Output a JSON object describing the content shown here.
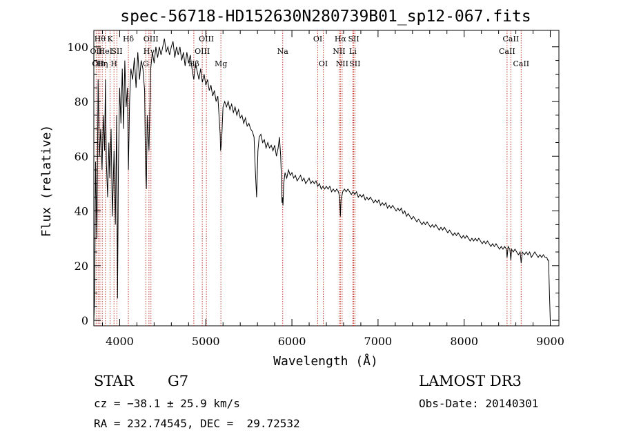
{
  "chart_data": {
    "type": "line",
    "title": "spec-56718-HD152630N280739B01_sp12-067.fits",
    "xlabel": "Wavelength (Å)",
    "ylabel": "Flux (relative)",
    "xlim": [
      3700,
      9100
    ],
    "ylim": [
      -2,
      106
    ],
    "xticks": [
      4000,
      5000,
      6000,
      7000,
      8000,
      9000
    ],
    "yticks": [
      0,
      20,
      40,
      60,
      80,
      100
    ],
    "grid": false,
    "line_color": "#000000",
    "marker_color": "#c0392b",
    "series": [
      {
        "values": [
          [
            3700,
            0
          ],
          [
            3710,
            8
          ],
          [
            3720,
            58
          ],
          [
            3735,
            30
          ],
          [
            3750,
            88
          ],
          [
            3765,
            60
          ],
          [
            3780,
            70
          ],
          [
            3795,
            55
          ],
          [
            3810,
            75
          ],
          [
            3825,
            62
          ],
          [
            3835,
            88
          ],
          [
            3845,
            58
          ],
          [
            3860,
            45
          ],
          [
            3875,
            65
          ],
          [
            3885,
            52
          ],
          [
            3900,
            70
          ],
          [
            3915,
            38
          ],
          [
            3935,
            62
          ],
          [
            3950,
            35
          ],
          [
            3965,
            75
          ],
          [
            3975,
            8
          ],
          [
            3985,
            55
          ],
          [
            4000,
            85
          ],
          [
            4015,
            72
          ],
          [
            4030,
            92
          ],
          [
            4045,
            70
          ],
          [
            4060,
            95
          ],
          [
            4075,
            78
          ],
          [
            4090,
            85
          ],
          [
            4101,
            55
          ],
          [
            4115,
            80
          ],
          [
            4130,
            92
          ],
          [
            4150,
            88
          ],
          [
            4170,
            96
          ],
          [
            4190,
            85
          ],
          [
            4210,
            98
          ],
          [
            4230,
            88
          ],
          [
            4250,
            95
          ],
          [
            4270,
            92
          ],
          [
            4290,
            84
          ],
          [
            4300,
            56
          ],
          [
            4310,
            48
          ],
          [
            4320,
            75
          ],
          [
            4340,
            62
          ],
          [
            4360,
            92
          ],
          [
            4380,
            98
          ],
          [
            4400,
            94
          ],
          [
            4420,
            100
          ],
          [
            4440,
            96
          ],
          [
            4460,
            100
          ],
          [
            4480,
            97
          ],
          [
            4500,
            100
          ],
          [
            4520,
            103
          ],
          [
            4540,
            98
          ],
          [
            4560,
            100
          ],
          [
            4580,
            97
          ],
          [
            4600,
            100
          ],
          [
            4620,
            102
          ],
          [
            4640,
            96
          ],
          [
            4660,
            100
          ],
          [
            4680,
            97
          ],
          [
            4700,
            100
          ],
          [
            4720,
            95
          ],
          [
            4740,
            98
          ],
          [
            4760,
            93
          ],
          [
            4780,
            98
          ],
          [
            4800,
            94
          ],
          [
            4820,
            97
          ],
          [
            4840,
            92
          ],
          [
            4861,
            88
          ],
          [
            4880,
            94
          ],
          [
            4900,
            91
          ],
          [
            4920,
            88
          ],
          [
            4940,
            92
          ],
          [
            4960,
            87
          ],
          [
            4980,
            90
          ],
          [
            5000,
            86
          ],
          [
            5020,
            88
          ],
          [
            5040,
            84
          ],
          [
            5060,
            86
          ],
          [
            5080,
            82
          ],
          [
            5100,
            84
          ],
          [
            5120,
            80
          ],
          [
            5140,
            82
          ],
          [
            5167,
            68
          ],
          [
            5172,
            62
          ],
          [
            5183,
            65
          ],
          [
            5200,
            78
          ],
          [
            5220,
            80
          ],
          [
            5240,
            78
          ],
          [
            5260,
            80
          ],
          [
            5280,
            77
          ],
          [
            5300,
            79
          ],
          [
            5320,
            76
          ],
          [
            5340,
            78
          ],
          [
            5360,
            75
          ],
          [
            5380,
            77
          ],
          [
            5400,
            74
          ],
          [
            5420,
            75
          ],
          [
            5440,
            72
          ],
          [
            5460,
            74
          ],
          [
            5480,
            71
          ],
          [
            5500,
            72
          ],
          [
            5520,
            70
          ],
          [
            5540,
            69
          ],
          [
            5560,
            67
          ],
          [
            5575,
            55
          ],
          [
            5590,
            45
          ],
          [
            5605,
            62
          ],
          [
            5620,
            67
          ],
          [
            5640,
            68
          ],
          [
            5660,
            65
          ],
          [
            5680,
            66
          ],
          [
            5700,
            63
          ],
          [
            5720,
            65
          ],
          [
            5740,
            63
          ],
          [
            5760,
            64
          ],
          [
            5780,
            62
          ],
          [
            5800,
            64
          ],
          [
            5820,
            60
          ],
          [
            5840,
            63
          ],
          [
            5855,
            67
          ],
          [
            5870,
            60
          ],
          [
            5880,
            50
          ],
          [
            5885,
            43
          ],
          [
            5890,
            45
          ],
          [
            5896,
            42
          ],
          [
            5905,
            50
          ],
          [
            5920,
            54
          ],
          [
            5940,
            52
          ],
          [
            5960,
            55
          ],
          [
            5980,
            53
          ],
          [
            6000,
            54
          ],
          [
            6020,
            52
          ],
          [
            6040,
            53
          ],
          [
            6060,
            51
          ],
          [
            6080,
            52
          ],
          [
            6100,
            53
          ],
          [
            6120,
            51
          ],
          [
            6140,
            52
          ],
          [
            6160,
            50
          ],
          [
            6180,
            51
          ],
          [
            6200,
            52
          ],
          [
            6220,
            50
          ],
          [
            6240,
            51
          ],
          [
            6260,
            50
          ],
          [
            6280,
            51
          ],
          [
            6300,
            49
          ],
          [
            6320,
            50
          ],
          [
            6340,
            48
          ],
          [
            6360,
            49
          ],
          [
            6380,
            48
          ],
          [
            6400,
            49
          ],
          [
            6420,
            48
          ],
          [
            6440,
            49
          ],
          [
            6460,
            47
          ],
          [
            6480,
            48
          ],
          [
            6500,
            47
          ],
          [
            6520,
            48
          ],
          [
            6540,
            47
          ],
          [
            6555,
            45
          ],
          [
            6563,
            38
          ],
          [
            6570,
            44
          ],
          [
            6590,
            47
          ],
          [
            6610,
            48
          ],
          [
            6630,
            47
          ],
          [
            6650,
            48
          ],
          [
            6670,
            47
          ],
          [
            6690,
            46
          ],
          [
            6710,
            47
          ],
          [
            6730,
            46
          ],
          [
            6750,
            47
          ],
          [
            6770,
            45
          ],
          [
            6790,
            46
          ],
          [
            6810,
            45
          ],
          [
            6830,
            46
          ],
          [
            6850,
            44
          ],
          [
            6870,
            45
          ],
          [
            6890,
            44
          ],
          [
            6910,
            45
          ],
          [
            6930,
            44
          ],
          [
            6950,
            43
          ],
          [
            6970,
            44
          ],
          [
            6990,
            43
          ],
          [
            7010,
            44
          ],
          [
            7030,
            42
          ],
          [
            7050,
            43
          ],
          [
            7070,
            42
          ],
          [
            7090,
            43
          ],
          [
            7110,
            41
          ],
          [
            7130,
            42
          ],
          [
            7150,
            41
          ],
          [
            7170,
            42
          ],
          [
            7190,
            41
          ],
          [
            7210,
            40
          ],
          [
            7230,
            41
          ],
          [
            7250,
            40
          ],
          [
            7270,
            41
          ],
          [
            7290,
            39
          ],
          [
            7310,
            40
          ],
          [
            7330,
            38
          ],
          [
            7350,
            39
          ],
          [
            7370,
            38
          ],
          [
            7390,
            37
          ],
          [
            7410,
            38
          ],
          [
            7430,
            37
          ],
          [
            7450,
            36
          ],
          [
            7470,
            37
          ],
          [
            7490,
            36
          ],
          [
            7510,
            35
          ],
          [
            7530,
            36
          ],
          [
            7550,
            35
          ],
          [
            7570,
            36
          ],
          [
            7590,
            35
          ],
          [
            7610,
            34
          ],
          [
            7630,
            35
          ],
          [
            7650,
            34
          ],
          [
            7670,
            35
          ],
          [
            7690,
            34
          ],
          [
            7710,
            33
          ],
          [
            7730,
            34
          ],
          [
            7750,
            33
          ],
          [
            7770,
            34
          ],
          [
            7790,
            33
          ],
          [
            7810,
            32
          ],
          [
            7830,
            33
          ],
          [
            7850,
            32
          ],
          [
            7870,
            31
          ],
          [
            7890,
            32
          ],
          [
            7910,
            31
          ],
          [
            7930,
            32
          ],
          [
            7950,
            31
          ],
          [
            7970,
            30
          ],
          [
            7990,
            31
          ],
          [
            8010,
            30
          ],
          [
            8030,
            31
          ],
          [
            8050,
            30
          ],
          [
            8070,
            29
          ],
          [
            8090,
            30
          ],
          [
            8110,
            29
          ],
          [
            8130,
            30
          ],
          [
            8150,
            29
          ],
          [
            8170,
            30
          ],
          [
            8190,
            29
          ],
          [
            8210,
            28
          ],
          [
            8230,
            29
          ],
          [
            8250,
            28
          ],
          [
            8270,
            29
          ],
          [
            8290,
            28
          ],
          [
            8310,
            27
          ],
          [
            8330,
            28
          ],
          [
            8350,
            27
          ],
          [
            8370,
            28
          ],
          [
            8390,
            27
          ],
          [
            8410,
            26
          ],
          [
            8430,
            27
          ],
          [
            8450,
            26
          ],
          [
            8470,
            27
          ],
          [
            8490,
            26
          ],
          [
            8498,
            23
          ],
          [
            8510,
            27
          ],
          [
            8530,
            26
          ],
          [
            8542,
            22
          ],
          [
            8550,
            26
          ],
          [
            8570,
            25
          ],
          [
            8590,
            26
          ],
          [
            8610,
            25
          ],
          [
            8630,
            24
          ],
          [
            8650,
            25
          ],
          [
            8662,
            21
          ],
          [
            8675,
            25
          ],
          [
            8700,
            24
          ],
          [
            8720,
            25
          ],
          [
            8740,
            24
          ],
          [
            8760,
            25
          ],
          [
            8780,
            23
          ],
          [
            8800,
            24
          ],
          [
            8820,
            25
          ],
          [
            8840,
            24
          ],
          [
            8860,
            23
          ],
          [
            8880,
            24
          ],
          [
            8900,
            23
          ],
          [
            8920,
            24
          ],
          [
            8940,
            23
          ],
          [
            8960,
            23
          ],
          [
            8970,
            22
          ],
          [
            8980,
            22
          ],
          [
            8990,
            10
          ],
          [
            9000,
            0
          ]
        ]
      }
    ],
    "line_markers": [
      {
        "wl": 3727,
        "label": "OII",
        "row": 1
      },
      {
        "wl": 3750,
        "label": "OII",
        "row": 2
      },
      {
        "wl": 3771,
        "label": "Hθ",
        "row": 0
      },
      {
        "wl": 3798,
        "label": "Hη",
        "row": 2
      },
      {
        "wl": 3835,
        "label": "HeI",
        "row": 1
      },
      {
        "wl": 3889,
        "label": "K",
        "row": 0
      },
      {
        "wl": 3934,
        "label": "H",
        "row": 2
      },
      {
        "wl": 3968,
        "label": "SII",
        "row": 1
      },
      {
        "wl": 4101,
        "label": "Hδ",
        "row": 0
      },
      {
        "wl": 4304,
        "label": "G",
        "row": 2
      },
      {
        "wl": 4340,
        "label": "Hγ",
        "row": 1
      },
      {
        "wl": 4363,
        "label": "OIII",
        "row": 0
      },
      {
        "wl": 4861,
        "label": "Hβ",
        "row": 2
      },
      {
        "wl": 4959,
        "label": "OIII",
        "row": 1
      },
      {
        "wl": 5007,
        "label": "OIII",
        "row": 0
      },
      {
        "wl": 5175,
        "label": "Mg",
        "row": 2
      },
      {
        "wl": 5893,
        "label": "Na",
        "row": 1
      },
      {
        "wl": 6300,
        "label": "OI",
        "row": 0
      },
      {
        "wl": 6364,
        "label": "OI",
        "row": 2
      },
      {
        "wl": 6548,
        "label": "NII",
        "row": 1
      },
      {
        "wl": 6563,
        "label": "Hα",
        "row": 0
      },
      {
        "wl": 6583,
        "label": "NII",
        "row": 2
      },
      {
        "wl": 6707,
        "label": "Li",
        "row": 1
      },
      {
        "wl": 6717,
        "label": "SII",
        "row": 0
      },
      {
        "wl": 6731,
        "label": "SII",
        "row": 2
      },
      {
        "wl": 8498,
        "label": "CaII",
        "row": 1
      },
      {
        "wl": 8542,
        "label": "CaII",
        "row": 0
      },
      {
        "wl": 8662,
        "label": "CaII",
        "row": 2
      }
    ]
  },
  "info": {
    "object_type": "STAR",
    "subclass": "G7",
    "survey": "LAMOST DR3",
    "cz": "cz = −38.1 ± 25.9 km/s",
    "obs_date": "Obs-Date: 20140301",
    "coords": "RA = 232.74545, DEC =  29.72532"
  }
}
